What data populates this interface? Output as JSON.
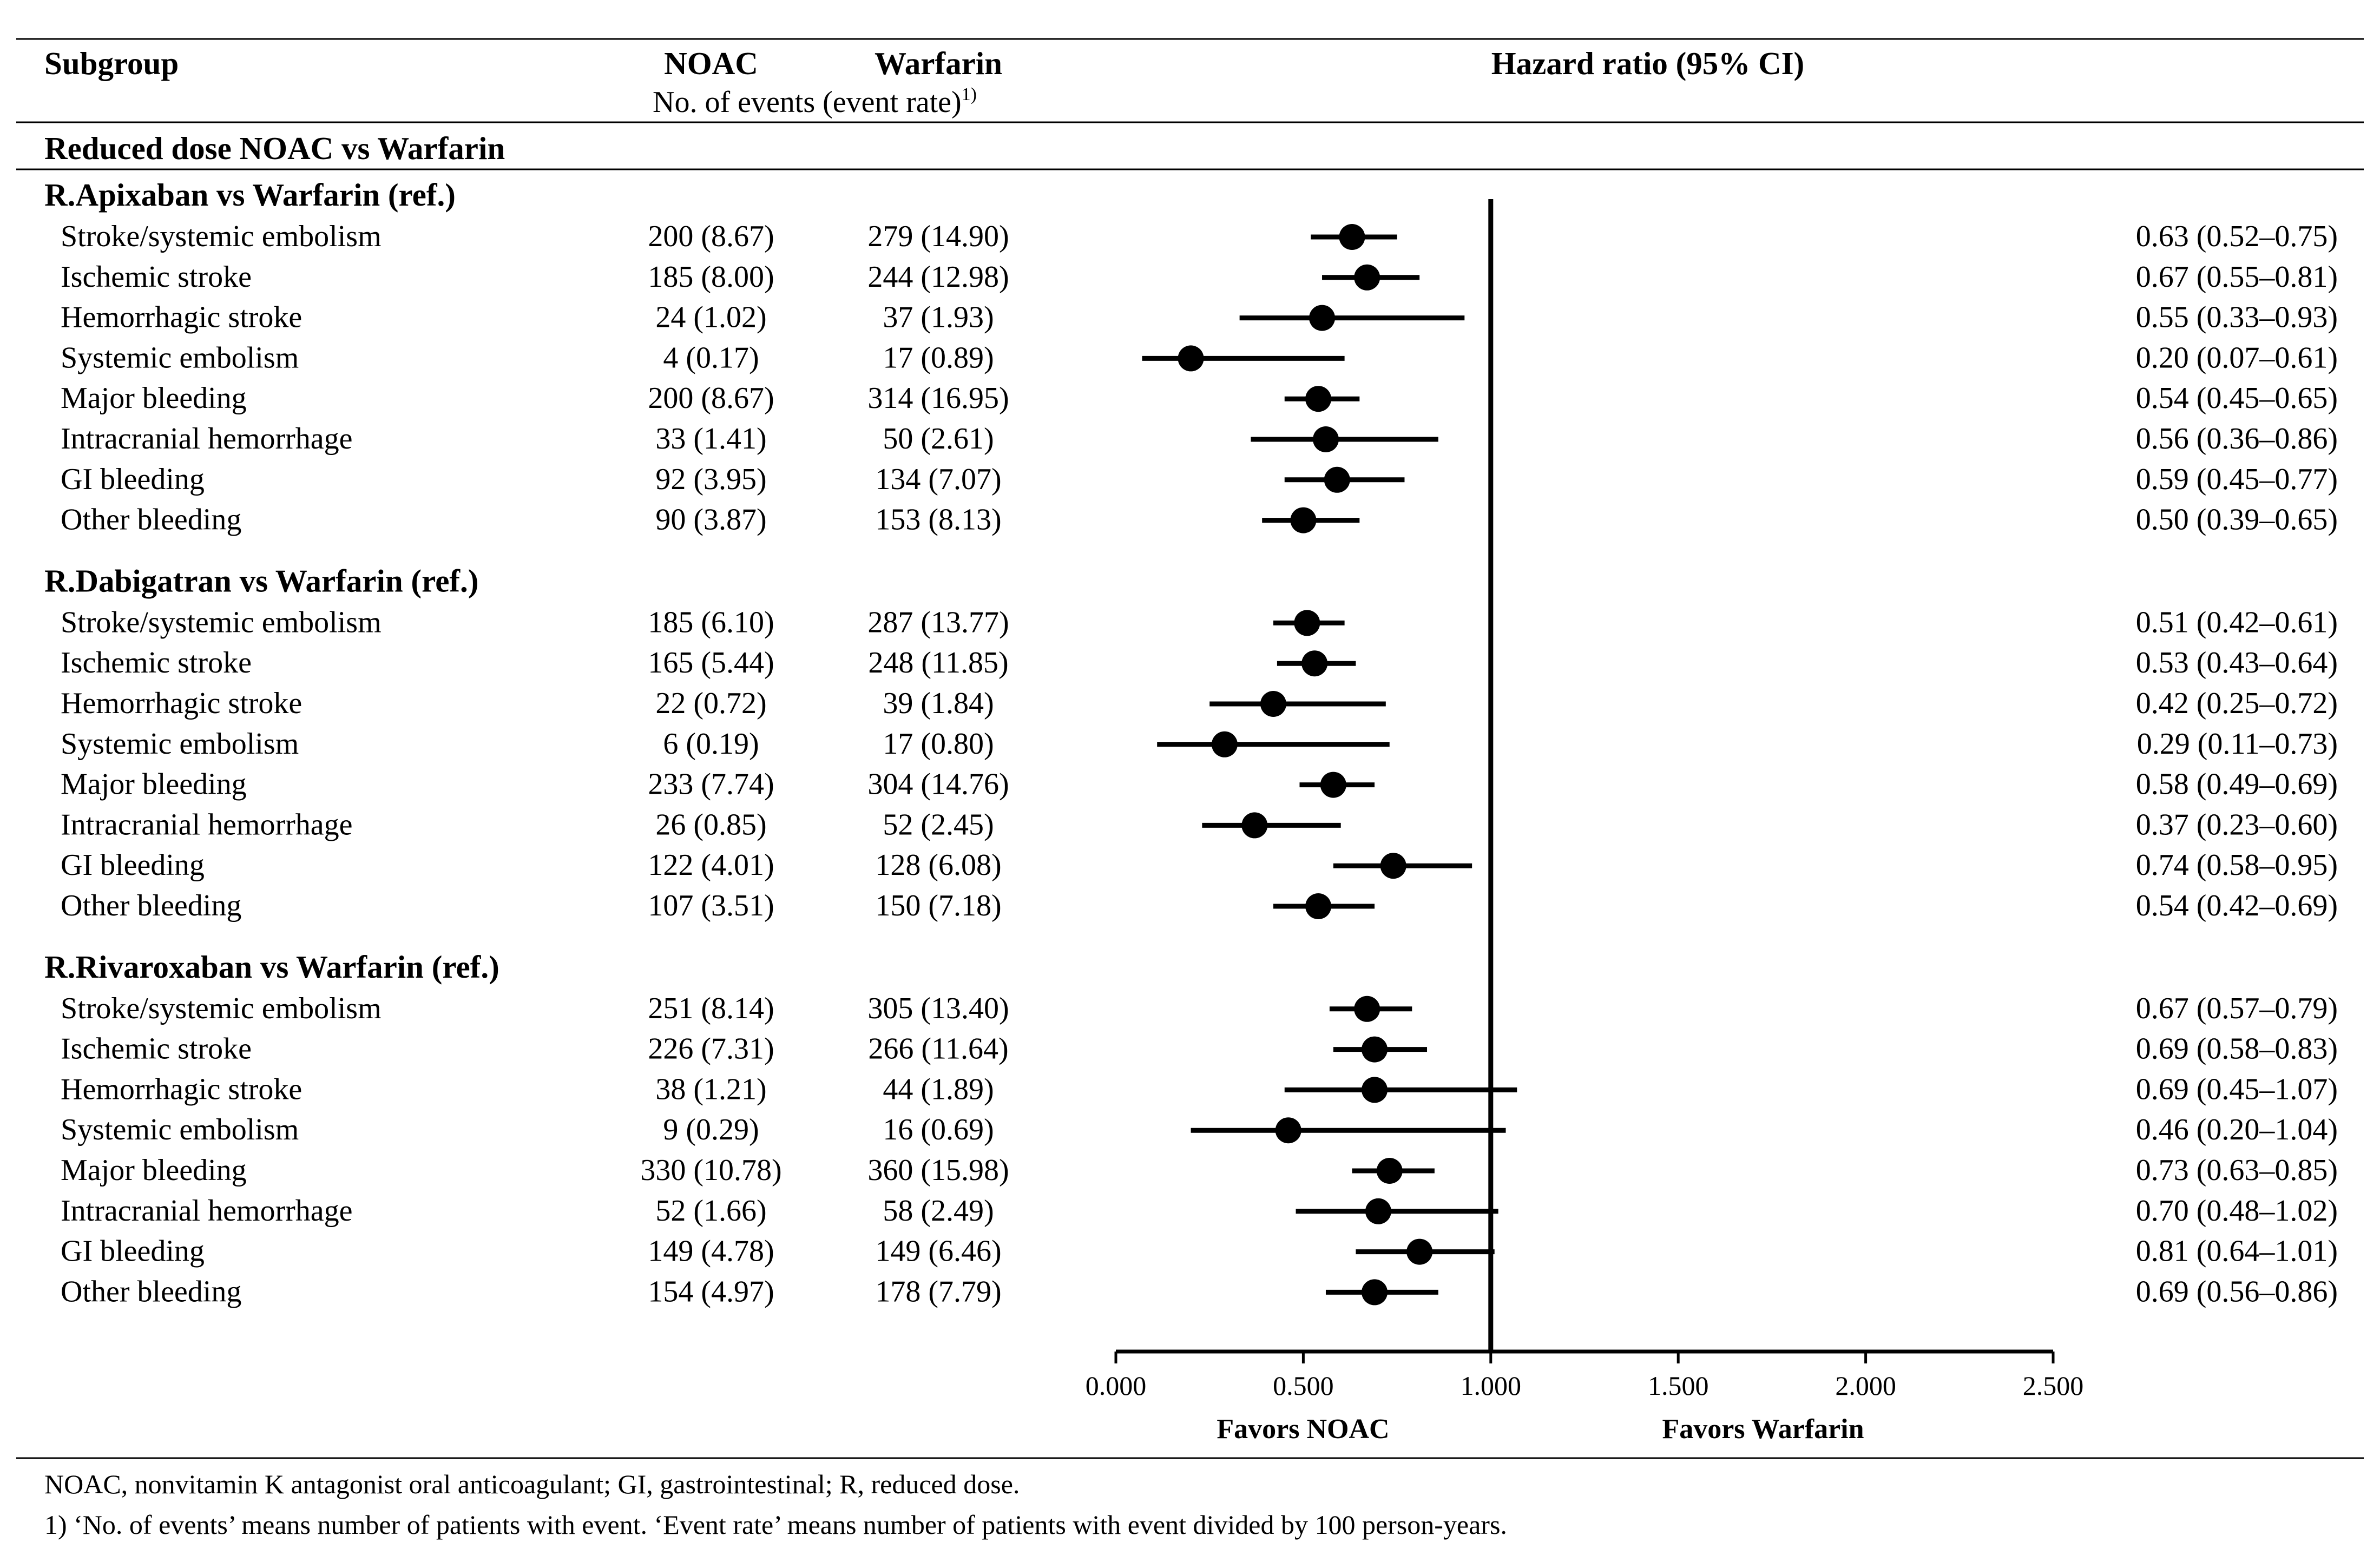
{
  "table": {
    "col_subgroup": "Subgroup",
    "col_noac": "NOAC",
    "col_warfarin": "Warfarin",
    "col_hr": "Hazard ratio (95% CI)",
    "sub_header": "No. of events (event rate)",
    "sub_header_sup": "1)",
    "section_title": "Reduced dose NOAC vs Warfarin"
  },
  "chart_data": {
    "type": "forest",
    "x_axis": {
      "min": 0,
      "max": 2.5,
      "ticks": [
        0,
        0.5,
        1.0,
        1.5,
        2.0,
        2.5
      ],
      "tick_labels": [
        "0.000",
        "0.500",
        "1.000",
        "1.500",
        "2.000",
        "2.500"
      ],
      "reference_line": 1.0,
      "label_left": "Favors NOAC",
      "label_right": "Favors Warfarin"
    },
    "groups": [
      {
        "title": "R.Apixaban vs Warfarin (ref.)",
        "rows": [
          {
            "label": "Stroke/systemic embolism",
            "noac": "200 (8.67)",
            "warfarin": "279 (14.90)",
            "hr": 0.63,
            "lo": 0.52,
            "hi": 0.75,
            "ci_text": "0.63 (0.52–0.75)"
          },
          {
            "label": "Ischemic stroke",
            "noac": "185 (8.00)",
            "warfarin": "244 (12.98)",
            "hr": 0.67,
            "lo": 0.55,
            "hi": 0.81,
            "ci_text": "0.67 (0.55–0.81)"
          },
          {
            "label": "Hemorrhagic stroke",
            "noac": "24 (1.02)",
            "warfarin": "37 (1.93)",
            "hr": 0.55,
            "lo": 0.33,
            "hi": 0.93,
            "ci_text": "0.55 (0.33–0.93)"
          },
          {
            "label": "Systemic embolism",
            "noac": "4 (0.17)",
            "warfarin": "17 (0.89)",
            "hr": 0.2,
            "lo": 0.07,
            "hi": 0.61,
            "ci_text": "0.20 (0.07–0.61)"
          },
          {
            "label": "Major bleeding",
            "noac": "200 (8.67)",
            "warfarin": "314 (16.95)",
            "hr": 0.54,
            "lo": 0.45,
            "hi": 0.65,
            "ci_text": "0.54 (0.45–0.65)"
          },
          {
            "label": "Intracranial hemorrhage",
            "noac": "33 (1.41)",
            "warfarin": "50 (2.61)",
            "hr": 0.56,
            "lo": 0.36,
            "hi": 0.86,
            "ci_text": "0.56 (0.36–0.86)"
          },
          {
            "label": "GI bleeding",
            "noac": "92 (3.95)",
            "warfarin": "134 (7.07)",
            "hr": 0.59,
            "lo": 0.45,
            "hi": 0.77,
            "ci_text": "0.59 (0.45–0.77)"
          },
          {
            "label": "Other bleeding",
            "noac": "90 (3.87)",
            "warfarin": "153 (8.13)",
            "hr": 0.5,
            "lo": 0.39,
            "hi": 0.65,
            "ci_text": "0.50 (0.39–0.65)"
          }
        ]
      },
      {
        "title": "R.Dabigatran vs Warfarin (ref.)",
        "rows": [
          {
            "label": "Stroke/systemic embolism",
            "noac": "185 (6.10)",
            "warfarin": "287 (13.77)",
            "hr": 0.51,
            "lo": 0.42,
            "hi": 0.61,
            "ci_text": "0.51 (0.42–0.61)"
          },
          {
            "label": "Ischemic stroke",
            "noac": "165 (5.44)",
            "warfarin": "248 (11.85)",
            "hr": 0.53,
            "lo": 0.43,
            "hi": 0.64,
            "ci_text": "0.53 (0.43–0.64)"
          },
          {
            "label": "Hemorrhagic stroke",
            "noac": "22 (0.72)",
            "warfarin": "39 (1.84)",
            "hr": 0.42,
            "lo": 0.25,
            "hi": 0.72,
            "ci_text": "0.42 (0.25–0.72)"
          },
          {
            "label": "Systemic embolism",
            "noac": "6 (0.19)",
            "warfarin": "17 (0.80)",
            "hr": 0.29,
            "lo": 0.11,
            "hi": 0.73,
            "ci_text": "0.29 (0.11–0.73)"
          },
          {
            "label": "Major bleeding",
            "noac": "233 (7.74)",
            "warfarin": "304 (14.76)",
            "hr": 0.58,
            "lo": 0.49,
            "hi": 0.69,
            "ci_text": "0.58 (0.49–0.69)"
          },
          {
            "label": "Intracranial hemorrhage",
            "noac": "26 (0.85)",
            "warfarin": "52 (2.45)",
            "hr": 0.37,
            "lo": 0.23,
            "hi": 0.6,
            "ci_text": "0.37 (0.23–0.60)"
          },
          {
            "label": "GI bleeding",
            "noac": "122 (4.01)",
            "warfarin": "128 (6.08)",
            "hr": 0.74,
            "lo": 0.58,
            "hi": 0.95,
            "ci_text": "0.74 (0.58–0.95)"
          },
          {
            "label": "Other bleeding",
            "noac": "107 (3.51)",
            "warfarin": "150 (7.18)",
            "hr": 0.54,
            "lo": 0.42,
            "hi": 0.69,
            "ci_text": "0.54 (0.42–0.69)"
          }
        ]
      },
      {
        "title": "R.Rivaroxaban vs Warfarin (ref.)",
        "rows": [
          {
            "label": "Stroke/systemic embolism",
            "noac": "251 (8.14)",
            "warfarin": "305 (13.40)",
            "hr": 0.67,
            "lo": 0.57,
            "hi": 0.79,
            "ci_text": "0.67 (0.57–0.79)"
          },
          {
            "label": "Ischemic stroke",
            "noac": "226 (7.31)",
            "warfarin": "266 (11.64)",
            "hr": 0.69,
            "lo": 0.58,
            "hi": 0.83,
            "ci_text": "0.69 (0.58–0.83)"
          },
          {
            "label": "Hemorrhagic stroke",
            "noac": "38 (1.21)",
            "warfarin": "44 (1.89)",
            "hr": 0.69,
            "lo": 0.45,
            "hi": 1.07,
            "ci_text": "0.69 (0.45–1.07)"
          },
          {
            "label": "Systemic embolism",
            "noac": "9 (0.29)",
            "warfarin": "16 (0.69)",
            "hr": 0.46,
            "lo": 0.2,
            "hi": 1.04,
            "ci_text": "0.46 (0.20–1.04)"
          },
          {
            "label": "Major bleeding",
            "noac": "330 (10.78)",
            "warfarin": "360 (15.98)",
            "hr": 0.73,
            "lo": 0.63,
            "hi": 0.85,
            "ci_text": "0.73 (0.63–0.85)"
          },
          {
            "label": "Intracranial hemorrhage",
            "noac": "52 (1.66)",
            "warfarin": "58 (2.49)",
            "hr": 0.7,
            "lo": 0.48,
            "hi": 1.02,
            "ci_text": "0.70 (0.48–1.02)"
          },
          {
            "label": "GI bleeding",
            "noac": "149 (4.78)",
            "warfarin": "149 (6.46)",
            "hr": 0.81,
            "lo": 0.64,
            "hi": 1.01,
            "ci_text": "0.81 (0.64–1.01)"
          },
          {
            "label": "Other bleeding",
            "noac": "154 (4.97)",
            "warfarin": "178 (7.79)",
            "hr": 0.69,
            "lo": 0.56,
            "hi": 0.86,
            "ci_text": "0.69 (0.56–0.86)"
          }
        ]
      }
    ]
  },
  "footnotes": {
    "abbreviations": "NOAC, nonvitamin K antagonist oral anticoagulant; GI, gastrointestinal; R, reduced dose.",
    "note_marker": "1)",
    "note_text": " ‘No. of events’ means number of patients with event. ‘Event rate’ means number of patients with event divided by 100 person-years."
  }
}
